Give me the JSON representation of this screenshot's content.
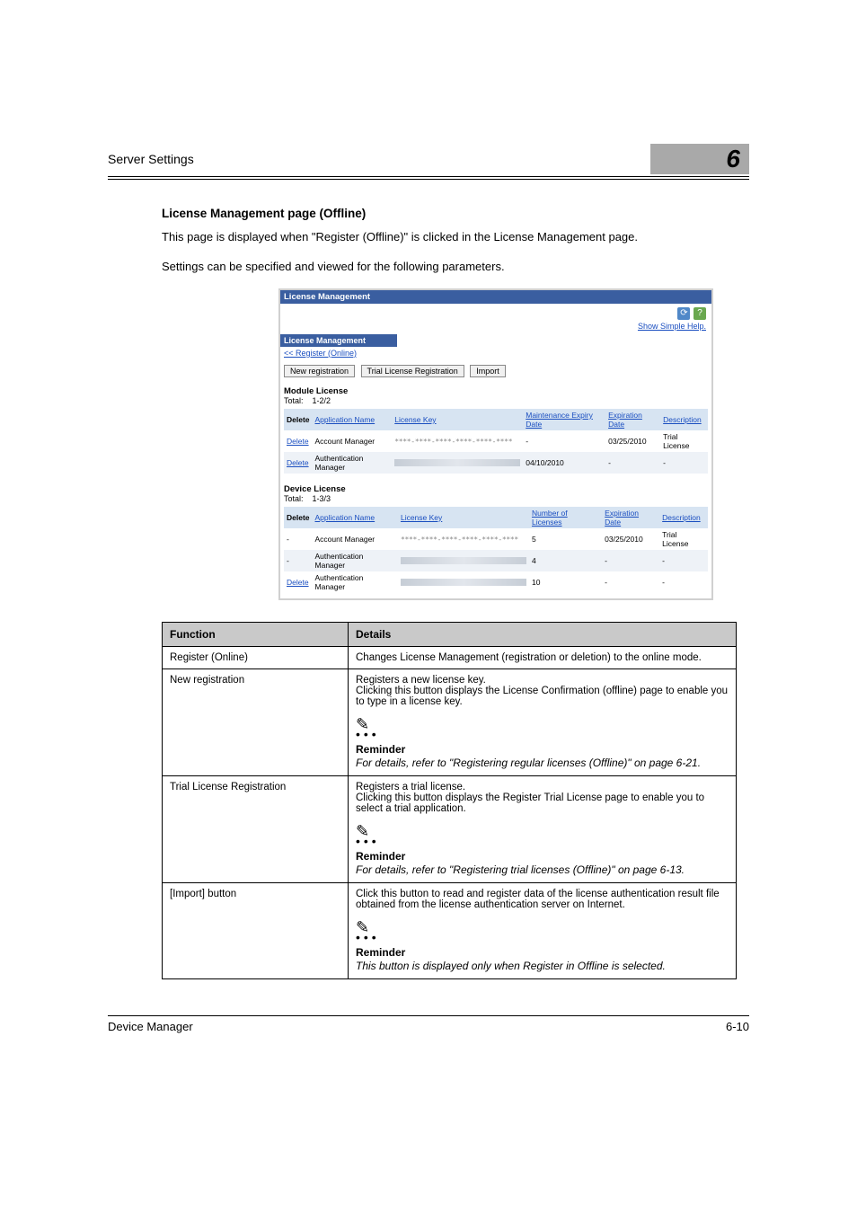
{
  "header": {
    "section": "Server Settings",
    "chapter_number": "6"
  },
  "title": "License Management page (Offline)",
  "intro1": "This page is displayed when \"Register (Offline)\" is clicked in the License Management page.",
  "intro2": "Settings can be specified and viewed for the following parameters.",
  "screenshot": {
    "titlebar": "License Management",
    "help_link": "Show Simple Help.",
    "subtitle": "License Management",
    "crumb": "<< Register (Online)",
    "buttons": {
      "new_reg": "New registration",
      "trial_reg": "Trial License Registration",
      "import": "Import"
    },
    "module": {
      "label": "Module License",
      "total_label": "Total:",
      "total_value": "1-2/2"
    },
    "module_headers": {
      "del": "Delete",
      "app": "Application Name",
      "key": "License Key",
      "maint": "Maintenance Expiry Date",
      "exp": "Expiration Date",
      "desc": "Description"
    },
    "module_rows": [
      {
        "del": "Delete",
        "app": "Account Manager",
        "key": "****-****-****-****-****-****",
        "maint": "-",
        "exp": "03/25/2010",
        "desc": "Trial License"
      },
      {
        "del": "Delete",
        "app": "Authentication Manager",
        "key_mask": true,
        "maint": "04/10/2010",
        "exp": "-",
        "desc": "-"
      }
    ],
    "device": {
      "label": "Device License",
      "total_label": "Total:",
      "total_value": "1-3/3"
    },
    "device_headers": {
      "del": "Delete",
      "app": "Application Name",
      "key": "License Key",
      "num": "Number of Licenses",
      "exp": "Expiration Date",
      "desc": "Description"
    },
    "device_rows": [
      {
        "del": "-",
        "app": "Account Manager",
        "key": "****-****-****-****-****-****",
        "num": "5",
        "exp": "03/25/2010",
        "desc": "Trial License"
      },
      {
        "del": "-",
        "app": "Authentication Manager",
        "key_mask": true,
        "num": "4",
        "exp": "-",
        "desc": "-"
      },
      {
        "del": "Delete",
        "app": "Authentication Manager",
        "key_mask": true,
        "num": "10",
        "exp": "-",
        "desc": "-"
      }
    ]
  },
  "spec": {
    "head_fn": "Function",
    "head_det": "Details",
    "rows": [
      {
        "fn": "Register (Online)",
        "det": "Changes License Management (registration or deletion) to the online mode."
      },
      {
        "fn": "New registration",
        "det": "Registers a new license key.\nClicking this button displays the License Confirmation (offline) page to enable you to type in a license key.",
        "reminder": "For details, refer to \"Registering regular licenses (Offline)\" on page 6-21."
      },
      {
        "fn": "Trial License Registration",
        "det": "Registers a trial license.\nClicking this button displays the Register Trial License page to enable you to select a trial application.",
        "reminder": "For details, refer to \"Registering trial licenses (Offline)\" on page 6-13."
      },
      {
        "fn": "[Import] button",
        "det": "Click this button to read and register data of the license authentication result file obtained from the license authentication server on Internet.",
        "reminder": "This button is displayed only when Register in Offline is selected."
      }
    ],
    "reminder_label": "Reminder"
  },
  "footer": {
    "left": "Device Manager",
    "right": "6-10"
  },
  "colors": {
    "tab_bg": "#a9a9a9",
    "ss_titlebar": "#3a5ea0",
    "ss_header_bg": "#d7e4f2",
    "ss_link": "#1a4ec0",
    "spec_th_bg": "#c9c9c9",
    "refresh_bg": "#5088c8",
    "help_bg": "#6aa84f"
  }
}
